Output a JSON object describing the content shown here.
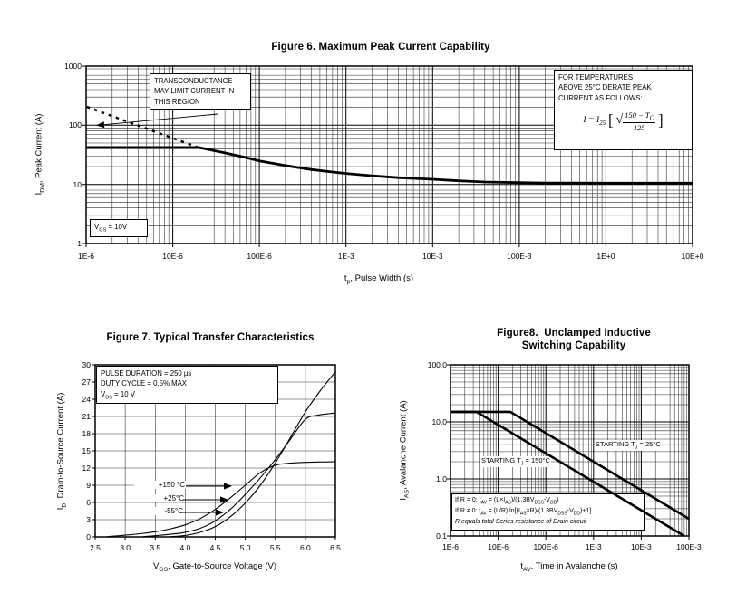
{
  "page": {
    "background": "#ffffff",
    "ink": "#000000"
  },
  "fig6": {
    "title": "Figure 6. Maximum Peak Current Capability",
    "xlabel": {
      "pre": "t",
      "sub": "p",
      "post": ", Pulse Width (s)"
    },
    "ylabel": {
      "pre": "I",
      "sub": "DM",
      "post": ", Peak Current (A)"
    },
    "note_transconductance": {
      "line1": "TRANSCONDUCTANCE",
      "line2": "MAY LIMIT CURRENT IN",
      "line3": "THIS REGION"
    },
    "note_derate": {
      "line1": "FOR TEMPERATURES",
      "line2": "ABOVE 25°C DERATE PEAK",
      "line3": "CURRENT AS FOLLOWS:"
    },
    "formula": {
      "lhs": "I",
      "eq": "=",
      "base": "I",
      "base_sub": "25",
      "bracket_open": "[",
      "radical": "√",
      "num_pre": "150 − T",
      "num_sub": "C",
      "den": "125",
      "bracket_close": "]"
    },
    "note_vgs": {
      "pre": "V",
      "sub": "GS",
      "post": " = 10V"
    }
  },
  "fig7": {
    "title": "Figure 7. Typical Transfer Characteristics",
    "xlabel": {
      "pre": "V",
      "sub": "GS",
      "post": ", Gate-to-Source Voltage (V)"
    },
    "ylabel": {
      "pre": "I",
      "sub": "D",
      "post": ", Drain-to-Source Current (A)"
    },
    "conditions": {
      "line1": "PULSE DURATION = 250 µs",
      "line2": "DUTY CYCLE = 0.5% MAX",
      "line3_pre": "V",
      "line3_sub": "DS",
      "line3_post": " = 10 V"
    },
    "curve_labels": {
      "t150": "+150 °C",
      "t25": "+25°C",
      "tm55": "-55°C"
    }
  },
  "fig8": {
    "title_line1": "Figure8.  Unclamped Inductive",
    "title_line2": "Switching Capability",
    "xlabel": {
      "pre": "t",
      "sub": "AV",
      "post": ", Time in Avalanche (s)"
    },
    "ylabel": {
      "pre": "I",
      "sub": "AS",
      "post": ", Avalanche Current (A)"
    },
    "label_150": [
      [
        "t",
        "STARTING T"
      ],
      [
        "s",
        "J"
      ],
      [
        "t",
        " = 150°C"
      ]
    ],
    "label_25": [
      [
        "t",
        "STARTING T"
      ],
      [
        "s",
        "J"
      ],
      [
        "t",
        " = 25°C"
      ]
    ],
    "formula1": [
      [
        "t",
        "If R = 0: t"
      ],
      [
        "s",
        "AV"
      ],
      [
        "t",
        " = (L×I"
      ],
      [
        "s",
        "AS"
      ],
      [
        "t",
        ")/(1.3BV"
      ],
      [
        "s",
        "DSS"
      ],
      [
        "t",
        "-V"
      ],
      [
        "s",
        "DD"
      ],
      [
        "t",
        ")"
      ]
    ],
    "formula2": [
      [
        "t",
        "If R ≠ 0: t"
      ],
      [
        "s",
        "AV"
      ],
      [
        "t",
        " = (L/R) ln[(I"
      ],
      [
        "s",
        "AS"
      ],
      [
        "t",
        "×R)/(1.3BV"
      ],
      [
        "s",
        "DSS"
      ],
      [
        "t",
        "-V"
      ],
      [
        "s",
        "DD"
      ],
      [
        "t",
        ")+1]"
      ]
    ],
    "formula3": "R equals total Series resistance of Drain circuit"
  },
  "chart_data": [
    {
      "id": "fig6",
      "type": "line",
      "title": "Figure 6. Maximum Peak Current Capability",
      "xlabel": "tp, Pulse Width (s)",
      "ylabel": "IDM, Peak Current (A)",
      "x_scale": "log",
      "y_scale": "log",
      "xlim": [
        1e-06,
        10
      ],
      "ylim": [
        1,
        1000
      ],
      "x_tick_labels": [
        "1E-6",
        "10E-6",
        "100E-6",
        "1E-3",
        "10E-3",
        "100E-3",
        "1E+0",
        "10E+0"
      ],
      "y_tick_labels": [
        "1",
        "10",
        "100",
        "1000"
      ],
      "grid": "log-minor",
      "series": [
        {
          "id": "peak-current-curve",
          "name": "IDM peak current limit (VGS = 10V)",
          "style": "solid",
          "width": 2.8,
          "points": [
            [
              1e-06,
              42
            ],
            [
              2e-05,
              42
            ],
            [
              4e-05,
              34
            ],
            [
              7e-05,
              28.5
            ],
            [
              0.0001,
              25
            ],
            [
              0.0002,
              20.8
            ],
            [
              0.0004,
              17.8
            ],
            [
              0.0007,
              16.2
            ],
            [
              0.001,
              15.3
            ],
            [
              0.002,
              14
            ],
            [
              0.004,
              13
            ],
            [
              0.01,
              12.2
            ],
            [
              0.02,
              11.5
            ],
            [
              0.04,
              11
            ],
            [
              0.1,
              10.7
            ],
            [
              0.2,
              10.55
            ],
            [
              1,
              10.5
            ],
            [
              10,
              10.5
            ]
          ]
        },
        {
          "id": "transconductance-limit-curve",
          "name": "Transconductance limit region",
          "style": "dashed",
          "width": 2.4,
          "points": [
            [
              1.02e-06,
              205
            ],
            [
              1.9e-05,
              43
            ]
          ]
        }
      ]
    },
    {
      "id": "fig7",
      "type": "line",
      "title": "Figure 7. Typical Transfer Characteristics",
      "xlabel": "VGS, Gate-to-Source Voltage (V)",
      "ylabel": "ID, Drain-to-Source Current (A)",
      "x_scale": "linear",
      "y_scale": "linear",
      "xlim": [
        2.5,
        6.5
      ],
      "ylim": [
        0,
        30
      ],
      "x_grid_step": 0.5,
      "y_grid_step": 3,
      "x_tick_labels": [
        "2.5",
        "3.0",
        "3.5",
        "4.0",
        "4.5",
        "5.0",
        "5.5",
        "6.0",
        "6.5"
      ],
      "y_tick_labels": [
        "0",
        "3",
        "6",
        "9",
        "12",
        "15",
        "18",
        "21",
        "24",
        "27",
        "30"
      ],
      "smooth": true,
      "series": [
        {
          "id": "curve-150c",
          "name": "+150 °C",
          "width": 1.1,
          "points": [
            [
              2.7,
              0.05
            ],
            [
              3.0,
              0.3
            ],
            [
              3.25,
              0.55
            ],
            [
              3.5,
              0.9
            ],
            [
              3.75,
              1.4
            ],
            [
              4.0,
              2.1
            ],
            [
              4.25,
              3.2
            ],
            [
              4.5,
              4.8
            ],
            [
              4.75,
              6.8
            ],
            [
              5.0,
              9.0
            ],
            [
              5.25,
              11.2
            ],
            [
              5.5,
              12.5
            ],
            [
              5.75,
              12.85
            ],
            [
              6.0,
              13.0
            ],
            [
              6.5,
              13.1
            ]
          ]
        },
        {
          "id": "curve-25c",
          "name": "+25°C",
          "width": 1.1,
          "points": [
            [
              3.3,
              0.05
            ],
            [
              3.5,
              0.2
            ],
            [
              3.75,
              0.45
            ],
            [
              4.0,
              0.8
            ],
            [
              4.25,
              1.5
            ],
            [
              4.5,
              2.8
            ],
            [
              4.75,
              4.8
            ],
            [
              5.0,
              7.4
            ],
            [
              5.25,
              10.3
            ],
            [
              5.5,
              13.5
            ],
            [
              5.75,
              17.0
            ],
            [
              6.0,
              20.5
            ],
            [
              6.2,
              21.2
            ],
            [
              6.5,
              21.6
            ]
          ]
        },
        {
          "id": "curve-m55c",
          "name": "-55°C",
          "width": 1.1,
          "points": [
            [
              3.75,
              0.05
            ],
            [
              4.0,
              0.25
            ],
            [
              4.25,
              0.8
            ],
            [
              4.5,
              1.8
            ],
            [
              4.75,
              3.5
            ],
            [
              5.0,
              5.9
            ],
            [
              5.25,
              9.0
            ],
            [
              5.5,
              12.9
            ],
            [
              5.75,
              17.3
            ],
            [
              6.0,
              21.8
            ],
            [
              6.25,
              25.5
            ],
            [
              6.5,
              28.8
            ]
          ]
        }
      ]
    },
    {
      "id": "fig8",
      "type": "line",
      "title": "Figure8. Unclamped Inductive Switching Capability",
      "xlabel": "tAV, Time in Avalanche (s)",
      "ylabel": "IAS, Avalanche Current (A)",
      "x_scale": "log",
      "y_scale": "log",
      "xlim": [
        1e-06,
        0.1
      ],
      "ylim": [
        0.1,
        100
      ],
      "x_tick_labels": [
        "1E-6",
        "10E-6",
        "100E-6",
        "1E-3",
        "10E-3",
        "100E-3"
      ],
      "y_tick_labels": [
        "0.1",
        "1.0",
        "10.0",
        "100.0"
      ],
      "grid": "log-minor",
      "series": [
        {
          "id": "curve-tj25",
          "name": "STARTING TJ = 25°C",
          "width": 2.6,
          "points": [
            [
              1e-06,
              15
            ],
            [
              1.8e-05,
              15
            ],
            [
              0.1,
              0.2
            ]
          ]
        },
        {
          "id": "curve-tj150",
          "name": "STARTING TJ = 150°C",
          "width": 2.6,
          "points": [
            [
              1e-06,
              15
            ],
            [
              3.5e-06,
              15
            ],
            [
              0.08,
              0.1
            ]
          ]
        }
      ]
    }
  ]
}
